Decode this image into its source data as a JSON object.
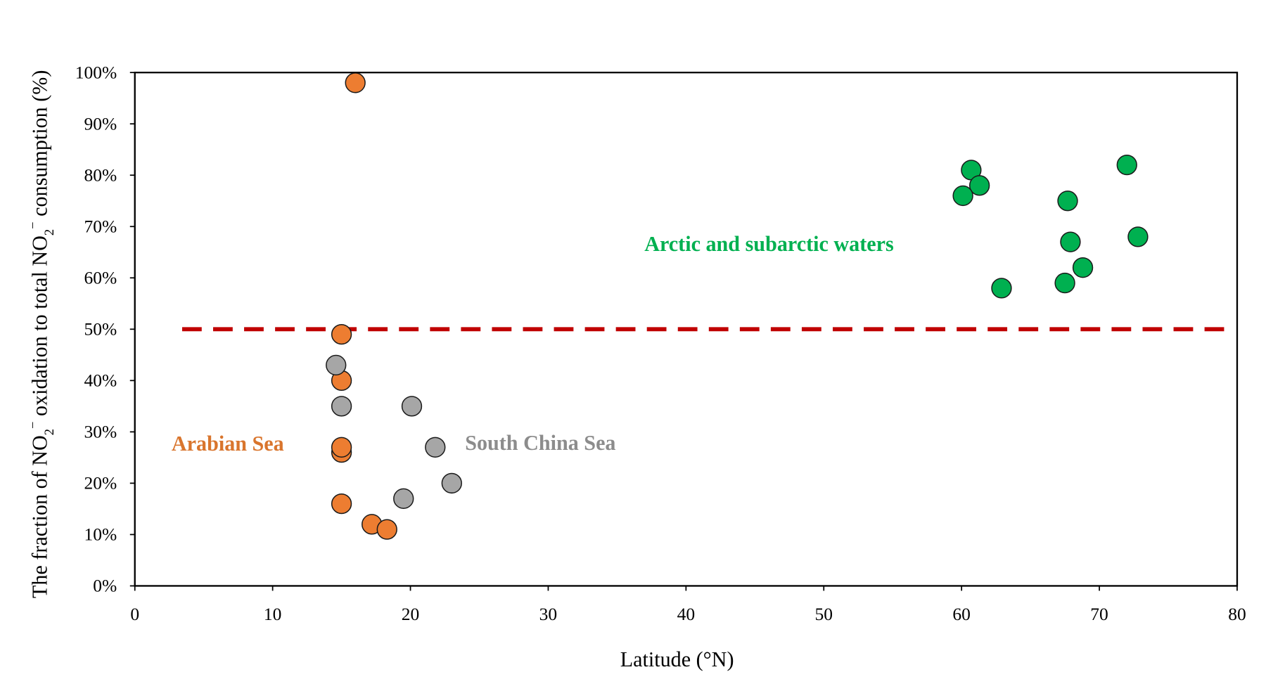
{
  "chart_data": {
    "type": "scatter",
    "title": "",
    "xlabel": "Latitude (°N)",
    "xlabel_parts": {
      "pre": "Latitude (",
      "sup": "o",
      "post": "N)"
    },
    "ylabel": "The fraction of NO2⁻ oxidation to total NO2⁻ consumption (%)",
    "ylabel_parts": {
      "a": "The fraction of NO",
      "sub": "2",
      "sup": "−",
      "b": " oxidation to total NO",
      "c": " consumption (%)"
    },
    "xlim": [
      0,
      80
    ],
    "ylim": [
      0,
      100
    ],
    "xticks": [
      "0",
      "10",
      "20",
      "30",
      "40",
      "50",
      "60",
      "70",
      "80"
    ],
    "yticks": [
      "0%",
      "10%",
      "20%",
      "30%",
      "40%",
      "50%",
      "60%",
      "70%",
      "80%",
      "90%",
      "100%"
    ],
    "reference_line": {
      "y": 50,
      "style": "dashed",
      "color": "#c00000"
    },
    "series": [
      {
        "name": "Arabian Sea",
        "color": "#ed7d31",
        "label_color": "#d9752d",
        "points": [
          [
            16.0,
            98
          ],
          [
            15.0,
            49
          ],
          [
            15.0,
            40
          ],
          [
            15.0,
            26
          ],
          [
            15.0,
            27
          ],
          [
            15.0,
            16
          ],
          [
            17.2,
            12
          ],
          [
            18.3,
            11
          ]
        ]
      },
      {
        "name": "South China Sea",
        "color": "#a6a6a6",
        "label_color": "#8c8c8c",
        "points": [
          [
            14.6,
            43
          ],
          [
            15.0,
            35
          ],
          [
            20.1,
            35
          ],
          [
            21.8,
            27
          ],
          [
            19.5,
            17
          ],
          [
            23.0,
            20
          ]
        ]
      },
      {
        "name": "Arctic and subarctic waters",
        "color": "#00b050",
        "label_color": "#00b050",
        "points": [
          [
            60.7,
            81
          ],
          [
            61.3,
            78
          ],
          [
            60.1,
            76
          ],
          [
            72.0,
            82
          ],
          [
            67.7,
            75
          ],
          [
            67.9,
            67
          ],
          [
            72.8,
            68
          ],
          [
            68.8,
            62
          ],
          [
            67.5,
            59
          ],
          [
            62.9,
            58
          ]
        ]
      }
    ],
    "annotations": {
      "arabian": "Arabian Sea",
      "scs": "South China Sea",
      "arctic": "Arctic and subarctic waters"
    },
    "grid": false,
    "legend": "none"
  }
}
